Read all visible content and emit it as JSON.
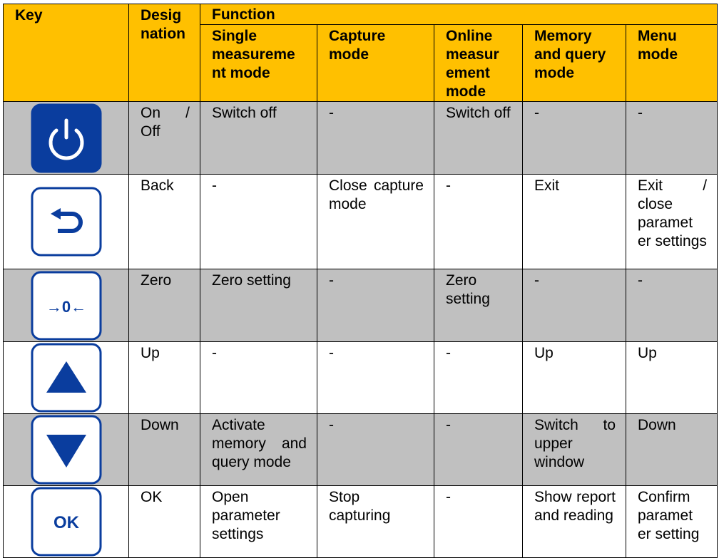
{
  "colors": {
    "header": "#FFC000",
    "shaded_row": "#C0C0C0",
    "key_blue": "#0A3D9E"
  },
  "header": {
    "key": "Key",
    "designation": "Desig nation",
    "function": "Function",
    "modes": [
      "Single measureme nt mode",
      "Capture mode",
      "Online measur ement mode",
      "Memory and query mode",
      "Menu mode"
    ]
  },
  "rows": [
    {
      "icon": "power-icon",
      "designation": "On / Off",
      "cells": [
        "Switch off",
        "-",
        "Switch off",
        "-",
        "-"
      ]
    },
    {
      "icon": "back-arrow-icon",
      "designation": "Back",
      "cells": [
        "-",
        "Close capture mode",
        "-",
        "Exit",
        "Exit / close paramet er settings"
      ]
    },
    {
      "icon": "zero-icon",
      "icon_text": "→0←",
      "designation": "Zero",
      "cells": [
        "Zero setting",
        "-",
        "Zero setting",
        "-",
        "-"
      ]
    },
    {
      "icon": "up-triangle-icon",
      "designation": "Up",
      "cells": [
        "-",
        "-",
        "-",
        "Up",
        "Up"
      ]
    },
    {
      "icon": "down-triangle-icon",
      "designation": "Down",
      "cells": [
        "Activate memory and query mode",
        "-",
        "-",
        "Switch to upper window",
        "Down"
      ]
    },
    {
      "icon": "ok-icon",
      "icon_text": "OK",
      "designation": "OK",
      "cells": [
        "Open parameter settings",
        "Stop capturing",
        "-",
        "Show report and reading",
        "Confirm paramet er setting"
      ]
    }
  ]
}
